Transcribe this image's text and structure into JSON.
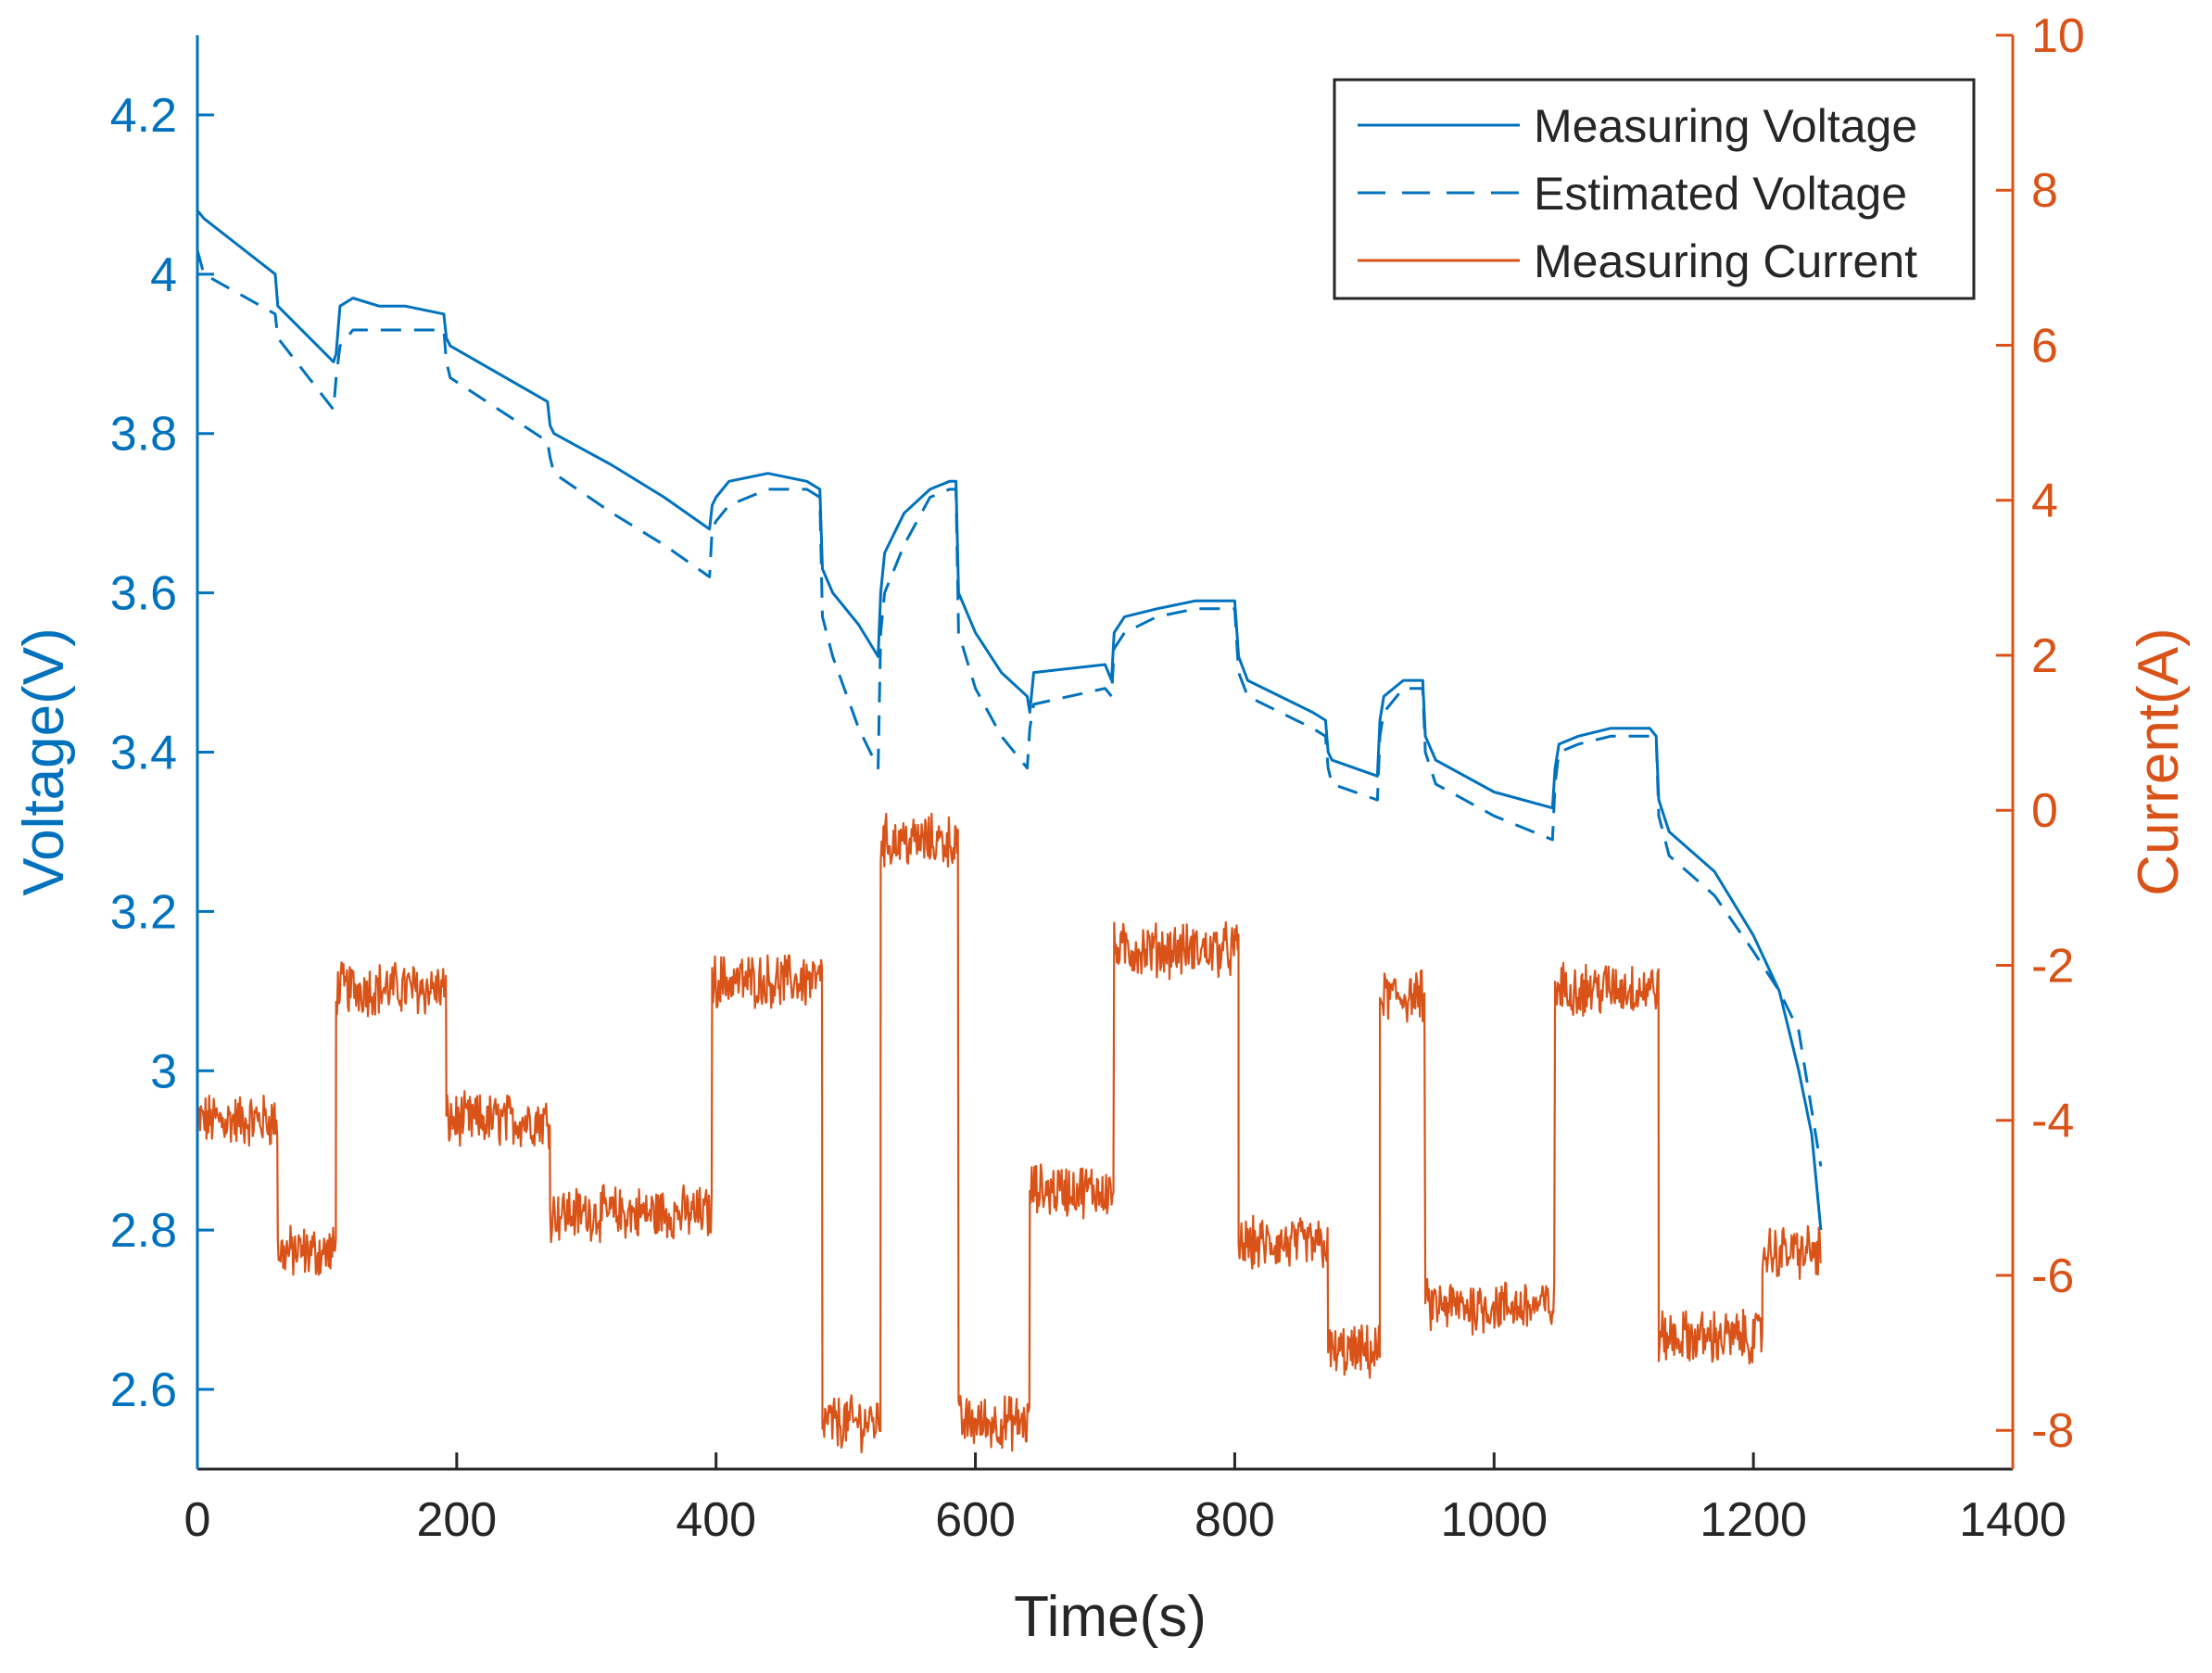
{
  "colors": {
    "voltage": "#0072BD",
    "current": "#D95319",
    "axis_x": "#262626",
    "legend_border": "#262626",
    "background": "#ffffff"
  },
  "chart_data": {
    "type": "line",
    "title": "",
    "xlabel": "Time(s)",
    "ylabel_left": "Voltage(V)",
    "ylabel_right": "Current(A)",
    "xlim": [
      0,
      1400
    ],
    "ylim_left": [
      2.5,
      4.3
    ],
    "ylim_right": [
      -8.5,
      10
    ],
    "x_ticks": [
      "0",
      "200",
      "400",
      "600",
      "800",
      "1000",
      "1200",
      "1400"
    ],
    "y_left_ticks": [
      "2.6",
      "2.8",
      "3",
      "3.2",
      "3.4",
      "3.6",
      "3.8",
      "4",
      "4.2"
    ],
    "y_right_ticks": [
      "-8",
      "-6",
      "-4",
      "-2",
      "0",
      "2",
      "4",
      "6",
      "8",
      "10"
    ],
    "legend": {
      "location": "top-right",
      "entries": [
        "Measuring Voltage",
        "Estimated Voltage",
        "Measuring Current"
      ]
    },
    "series": [
      {
        "name": "Measuring Voltage",
        "axis": "left",
        "style": "solid",
        "x": [
          0,
          5,
          60,
          62,
          105,
          107,
          110,
          120,
          140,
          160,
          190,
          192,
          195,
          270,
          272,
          275,
          320,
          360,
          395,
          397,
          400,
          410,
          440,
          470,
          480,
          482,
          490,
          510,
          525,
          527,
          530,
          545,
          565,
          580,
          585,
          587,
          600,
          620,
          640,
          642,
          645,
          700,
          705,
          707,
          715,
          740,
          770,
          800,
          803,
          810,
          860,
          870,
          872,
          875,
          910,
          912,
          915,
          930,
          945,
          947,
          955,
          1000,
          1045,
          1047,
          1050,
          1065,
          1090,
          1120,
          1125,
          1127,
          1135,
          1170,
          1200,
          1220,
          1235,
          1245,
          1252
        ],
        "y": [
          4.08,
          4.07,
          4.0,
          3.96,
          3.89,
          3.9,
          3.96,
          3.97,
          3.96,
          3.96,
          3.95,
          3.92,
          3.91,
          3.84,
          3.81,
          3.8,
          3.76,
          3.72,
          3.68,
          3.71,
          3.72,
          3.74,
          3.75,
          3.74,
          3.73,
          3.63,
          3.6,
          3.56,
          3.52,
          3.6,
          3.65,
          3.7,
          3.73,
          3.74,
          3.74,
          3.6,
          3.55,
          3.5,
          3.47,
          3.45,
          3.5,
          3.51,
          3.49,
          3.55,
          3.57,
          3.58,
          3.59,
          3.59,
          3.52,
          3.49,
          3.45,
          3.44,
          3.4,
          3.39,
          3.37,
          3.44,
          3.47,
          3.49,
          3.49,
          3.42,
          3.39,
          3.35,
          3.33,
          3.38,
          3.41,
          3.42,
          3.43,
          3.43,
          3.42,
          3.34,
          3.3,
          3.25,
          3.17,
          3.1,
          3.0,
          2.92,
          2.8
        ]
      },
      {
        "name": "Estimated Voltage",
        "axis": "left",
        "style": "dashed",
        "x": [
          0,
          5,
          60,
          62,
          105,
          107,
          110,
          120,
          140,
          160,
          190,
          192,
          195,
          270,
          272,
          275,
          320,
          360,
          395,
          397,
          400,
          410,
          440,
          470,
          480,
          482,
          490,
          510,
          525,
          527,
          530,
          545,
          565,
          580,
          585,
          587,
          600,
          620,
          640,
          642,
          645,
          700,
          705,
          707,
          715,
          740,
          770,
          800,
          803,
          810,
          860,
          870,
          872,
          875,
          910,
          912,
          915,
          930,
          945,
          947,
          955,
          1000,
          1045,
          1047,
          1050,
          1065,
          1090,
          1120,
          1125,
          1127,
          1135,
          1170,
          1200,
          1220,
          1235,
          1245,
          1252
        ],
        "y": [
          4.03,
          4.0,
          3.95,
          3.92,
          3.83,
          3.87,
          3.91,
          3.93,
          3.93,
          3.93,
          3.93,
          3.89,
          3.87,
          3.79,
          3.77,
          3.75,
          3.7,
          3.66,
          3.62,
          3.68,
          3.69,
          3.71,
          3.73,
          3.73,
          3.72,
          3.57,
          3.52,
          3.43,
          3.38,
          3.55,
          3.6,
          3.66,
          3.72,
          3.73,
          3.73,
          3.55,
          3.48,
          3.42,
          3.38,
          3.43,
          3.46,
          3.48,
          3.47,
          3.53,
          3.55,
          3.57,
          3.58,
          3.58,
          3.5,
          3.47,
          3.43,
          3.42,
          3.38,
          3.36,
          3.34,
          3.42,
          3.45,
          3.48,
          3.48,
          3.4,
          3.36,
          3.32,
          3.29,
          3.36,
          3.4,
          3.41,
          3.42,
          3.42,
          3.42,
          3.32,
          3.27,
          3.22,
          3.15,
          3.1,
          3.05,
          2.95,
          2.88
        ]
      },
      {
        "name": "Measuring Current",
        "axis": "right",
        "style": "solid",
        "segments": [
          {
            "t0": 0,
            "t1": 62,
            "i": -4.0
          },
          {
            "t0": 62,
            "t1": 107,
            "i": -5.7
          },
          {
            "t0": 107,
            "t1": 192,
            "i": -2.3
          },
          {
            "t0": 192,
            "t1": 272,
            "i": -4.0
          },
          {
            "t0": 272,
            "t1": 397,
            "i": -5.2
          },
          {
            "t0": 397,
            "t1": 482,
            "i": -2.2
          },
          {
            "t0": 482,
            "t1": 527,
            "i": -7.9
          },
          {
            "t0": 527,
            "t1": 587,
            "i": -0.4
          },
          {
            "t0": 587,
            "t1": 642,
            "i": -7.9
          },
          {
            "t0": 642,
            "t1": 707,
            "i": -4.9
          },
          {
            "t0": 707,
            "t1": 803,
            "i": -1.8
          },
          {
            "t0": 803,
            "t1": 872,
            "i": -5.6
          },
          {
            "t0": 872,
            "t1": 912,
            "i": -7.0
          },
          {
            "t0": 912,
            "t1": 947,
            "i": -2.4
          },
          {
            "t0": 947,
            "t1": 1047,
            "i": -6.4
          },
          {
            "t0": 1047,
            "t1": 1127,
            "i": -2.3
          },
          {
            "t0": 1127,
            "t1": 1207,
            "i": -6.8
          },
          {
            "t0": 1207,
            "t1": 1252,
            "i": -5.7
          }
        ],
        "noise_amplitude": 0.3
      }
    ]
  }
}
